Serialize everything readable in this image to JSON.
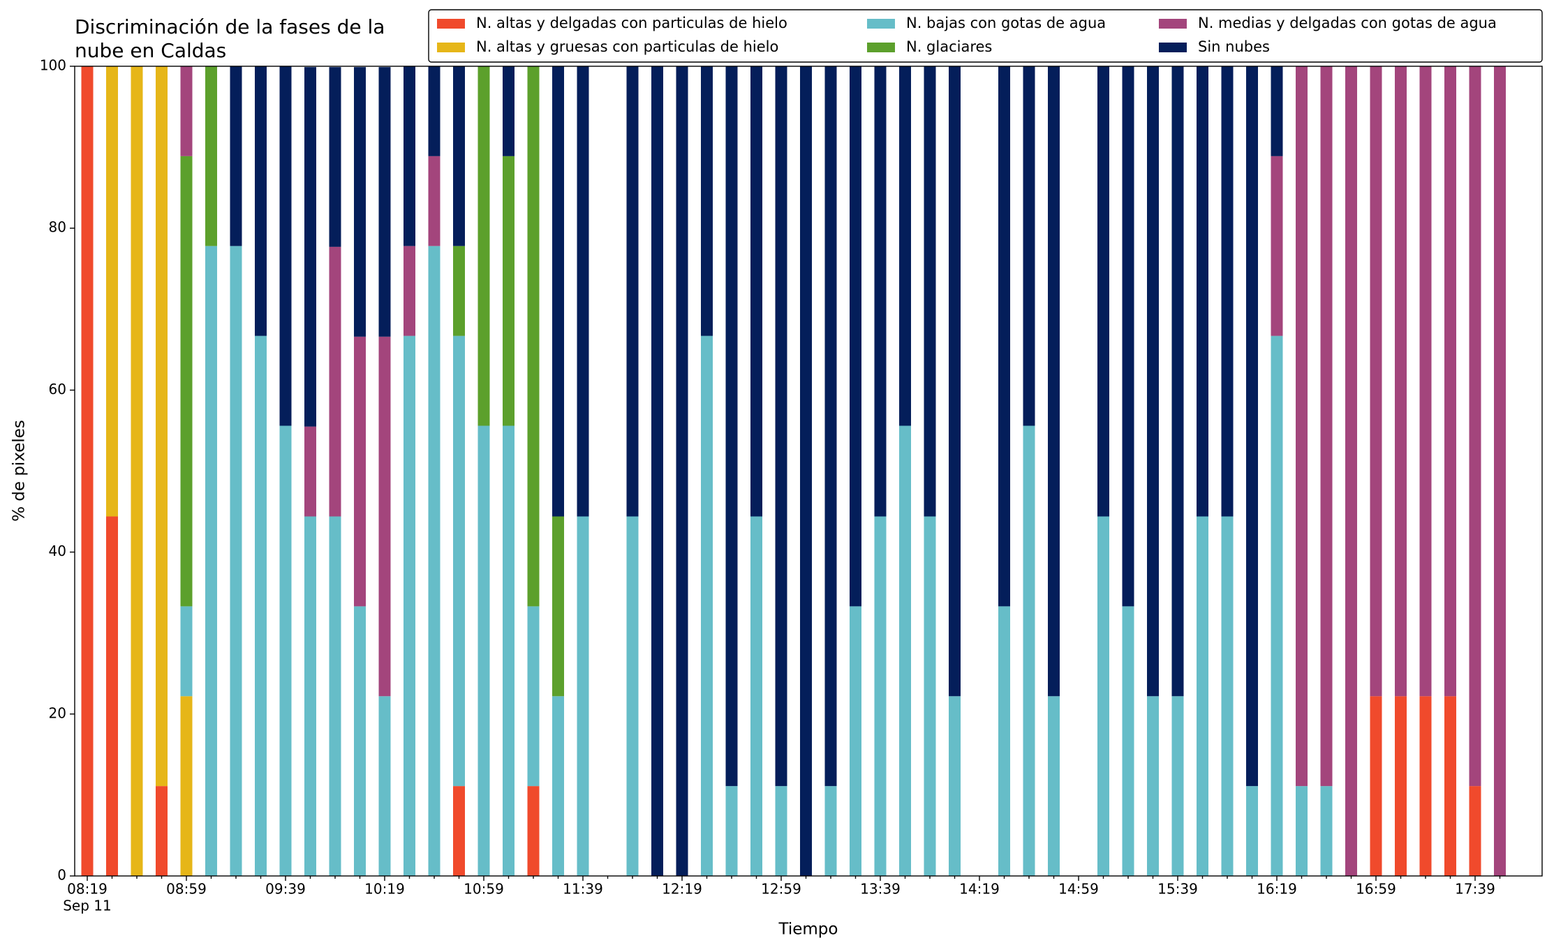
{
  "chart_data": {
    "type": "stacked_bar",
    "title": [
      "Discriminación de la fases de la",
      "nube en Caldas"
    ],
    "x_label": "Tiempo",
    "y_label": "% de pixeles",
    "date_label": "Sep 11",
    "categories": [
      "08:19",
      null,
      null,
      null,
      "08:59",
      null,
      null,
      null,
      "09:39",
      null,
      null,
      null,
      "10:19",
      null,
      null,
      null,
      "10:59",
      null,
      null,
      null,
      "11:39",
      null,
      null,
      null,
      "12:19",
      null,
      null,
      null,
      "12:59",
      null,
      null,
      null,
      "13:39",
      null,
      null,
      null,
      "14:19",
      null,
      null,
      null,
      "14:59",
      null,
      null,
      null,
      "15:39",
      null,
      null,
      null,
      "16:19",
      null,
      null,
      null,
      "16:59",
      null,
      null,
      null,
      "17:39",
      null
    ],
    "series": [
      {
        "name": "N. altas y delgadas con particulas de hielo",
        "color": "#f04a2c",
        "values": [
          100,
          44.4,
          0,
          11.1,
          0,
          0,
          0,
          0,
          0,
          0,
          0,
          0,
          0,
          0,
          0,
          11.1,
          0,
          0,
          11.1,
          0,
          0,
          null,
          0,
          0,
          0,
          0,
          0,
          0,
          0,
          0,
          0,
          0,
          0,
          0,
          0,
          0,
          null,
          0,
          0,
          0,
          null,
          0,
          0,
          0,
          0,
          0,
          0,
          0,
          0,
          0,
          0,
          0,
          22.2,
          22.2,
          22.2,
          22.2,
          11.1,
          0
        ]
      },
      {
        "name": "N. altas y gruesas con particulas de hielo",
        "color": "#e6b618",
        "values": [
          0,
          55.6,
          100,
          88.9,
          22.2,
          0,
          0,
          0,
          0,
          0,
          0,
          0,
          0,
          0,
          0,
          0,
          0,
          0,
          0,
          0,
          0,
          null,
          0,
          0,
          0,
          0,
          0,
          0,
          0,
          0,
          0,
          0,
          0,
          0,
          0,
          0,
          null,
          0,
          0,
          0,
          null,
          0,
          0,
          0,
          0,
          0,
          0,
          0,
          0,
          0,
          0,
          0,
          0,
          0,
          0,
          0,
          0,
          0
        ]
      },
      {
        "name": "N. bajas con gotas de agua",
        "color": "#66bdc8",
        "values": [
          0,
          0,
          0,
          0,
          11.1,
          77.8,
          77.8,
          66.7,
          55.6,
          44.4,
          44.4,
          33.3,
          22.2,
          66.7,
          77.8,
          55.6,
          55.6,
          55.6,
          22.2,
          22.2,
          44.4,
          null,
          44.4,
          0,
          0,
          66.7,
          11.1,
          44.4,
          11.1,
          0,
          11.1,
          33.3,
          44.4,
          55.6,
          44.4,
          22.2,
          null,
          33.3,
          55.6,
          22.2,
          null,
          44.4,
          33.3,
          22.2,
          22.2,
          44.4,
          44.4,
          11.1,
          66.7,
          11.1,
          11.1,
          0,
          0,
          0,
          0,
          0,
          0,
          0
        ]
      },
      {
        "name": "N. glaciares",
        "color": "#5ca02c",
        "values": [
          0,
          0,
          0,
          0,
          55.6,
          22.2,
          0,
          0,
          0,
          0,
          0,
          0,
          0,
          0,
          0,
          11.1,
          44.4,
          33.3,
          66.7,
          22.2,
          0,
          null,
          0,
          0,
          0,
          0,
          0,
          0,
          0,
          0,
          0,
          0,
          0,
          0,
          0,
          0,
          null,
          0,
          0,
          0,
          null,
          0,
          0,
          0,
          0,
          0,
          0,
          0,
          0,
          0,
          0,
          0,
          0,
          0,
          0,
          0,
          0,
          0
        ]
      },
      {
        "name": "N. medias y delgadas con gotas de agua",
        "color": "#a3457c",
        "values": [
          0,
          0,
          0,
          0,
          11.1,
          0,
          0,
          0,
          0,
          11.1,
          33.3,
          33.3,
          44.4,
          11.1,
          11.1,
          0,
          0,
          0,
          0,
          0,
          0,
          null,
          0,
          0,
          0,
          0,
          0,
          0,
          0,
          0,
          0,
          0,
          0,
          0,
          0,
          0,
          null,
          0,
          0,
          0,
          null,
          0,
          0,
          0,
          0,
          0,
          0,
          0,
          22.2,
          88.9,
          88.9,
          100,
          77.8,
          77.8,
          77.8,
          77.8,
          88.9,
          100
        ]
      },
      {
        "name": "Sin nubes",
        "color": "#041e5a",
        "values": [
          0,
          0,
          0,
          0,
          0,
          0,
          22.2,
          33.3,
          44.4,
          44.4,
          22.2,
          33.3,
          33.3,
          22.2,
          11.1,
          22.2,
          0,
          11.1,
          0,
          55.6,
          55.6,
          null,
          55.6,
          100,
          100,
          33.3,
          88.9,
          55.6,
          88.9,
          100,
          88.9,
          66.7,
          55.6,
          44.4,
          55.6,
          77.8,
          null,
          66.7,
          44.4,
          77.8,
          null,
          55.6,
          66.7,
          77.8,
          77.8,
          55.6,
          55.6,
          88.9,
          11.1,
          0,
          0,
          0,
          0,
          0,
          0,
          0,
          0,
          0
        ]
      }
    ],
    "ylim": [
      0,
      100
    ],
    "yticks": [
      0,
      20,
      40,
      60,
      80,
      100
    ]
  }
}
